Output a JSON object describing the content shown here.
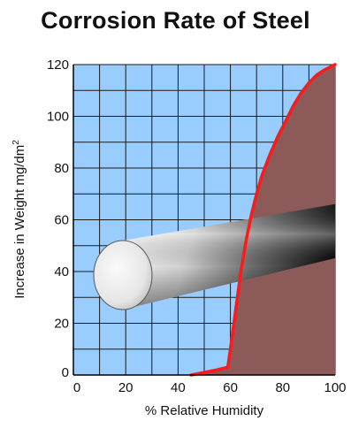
{
  "chart_data": {
    "type": "area",
    "title": "Corrosion Rate of Steel",
    "xlabel": "% Relative Humidity",
    "ylabel_main": "Increase in Weight mg/dm",
    "ylabel_sup": "2",
    "xlim": [
      0,
      100
    ],
    "ylim": [
      0,
      120
    ],
    "x_ticks": [
      "0",
      "20",
      "40",
      "60",
      "80",
      "100"
    ],
    "y_ticks": [
      "0",
      "20",
      "40",
      "60",
      "80",
      "100",
      "120"
    ],
    "grid": true,
    "legend": "none",
    "series": [
      {
        "color": "#ff1a1a",
        "fill": "#8c5a58",
        "x": [
          45,
          50,
          55,
          59,
          60,
          62,
          64,
          66,
          68,
          70,
          72,
          75,
          78,
          81,
          84,
          87,
          90,
          93,
          96,
          98,
          100
        ],
        "y": [
          0,
          1,
          2,
          3,
          10,
          25,
          40,
          52,
          62,
          70,
          77,
          85,
          92,
          98,
          104,
          109,
          113,
          116,
          118,
          119,
          120
        ]
      }
    ],
    "colors": {
      "plot_background": "#99ccff",
      "grid": "#1a1a1a",
      "curve": "#ff1a1a",
      "shaded_region": "#8c5a58",
      "axes": "#000000"
    }
  }
}
